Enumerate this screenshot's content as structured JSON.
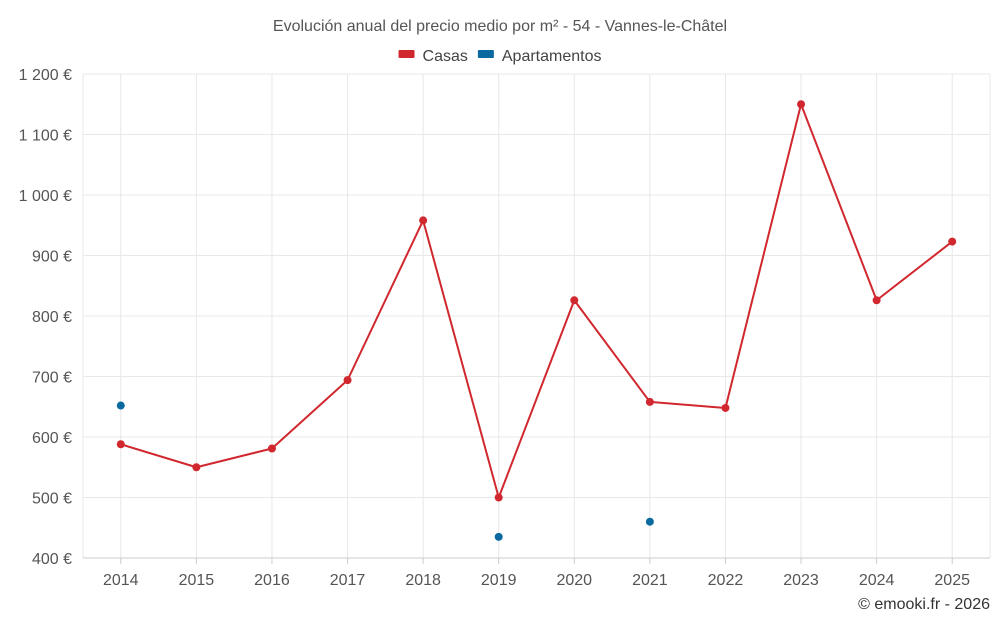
{
  "chart_data": {
    "type": "line",
    "title": "Evolución anual del precio medio por m² - 54 - Vannes-le-Châtel",
    "categories": [
      "2014",
      "2015",
      "2016",
      "2017",
      "2018",
      "2019",
      "2020",
      "2021",
      "2022",
      "2023",
      "2024",
      "2025"
    ],
    "ylim": [
      400,
      1200
    ],
    "yticks": [
      400,
      500,
      600,
      700,
      800,
      900,
      1000,
      1100,
      1200
    ],
    "ytick_labels": [
      "400 €",
      "500 €",
      "600 €",
      "700 €",
      "800 €",
      "900 €",
      "1 000 €",
      "1 100 €",
      "1 200 €"
    ],
    "grid": true,
    "legend_position": "top-center",
    "series": [
      {
        "name": "Casas",
        "color": "#d0282e",
        "values": [
          588,
          550,
          581,
          694,
          958,
          500,
          826,
          658,
          648,
          1150,
          826,
          923
        ],
        "mode": "lines+markers"
      },
      {
        "name": "Apartamentos",
        "color": "#0a6aa0",
        "values": [
          652,
          null,
          null,
          null,
          null,
          435,
          null,
          460,
          null,
          null,
          null,
          null
        ],
        "mode": "markers"
      }
    ]
  },
  "credit": "© emooki.fr - 2026"
}
